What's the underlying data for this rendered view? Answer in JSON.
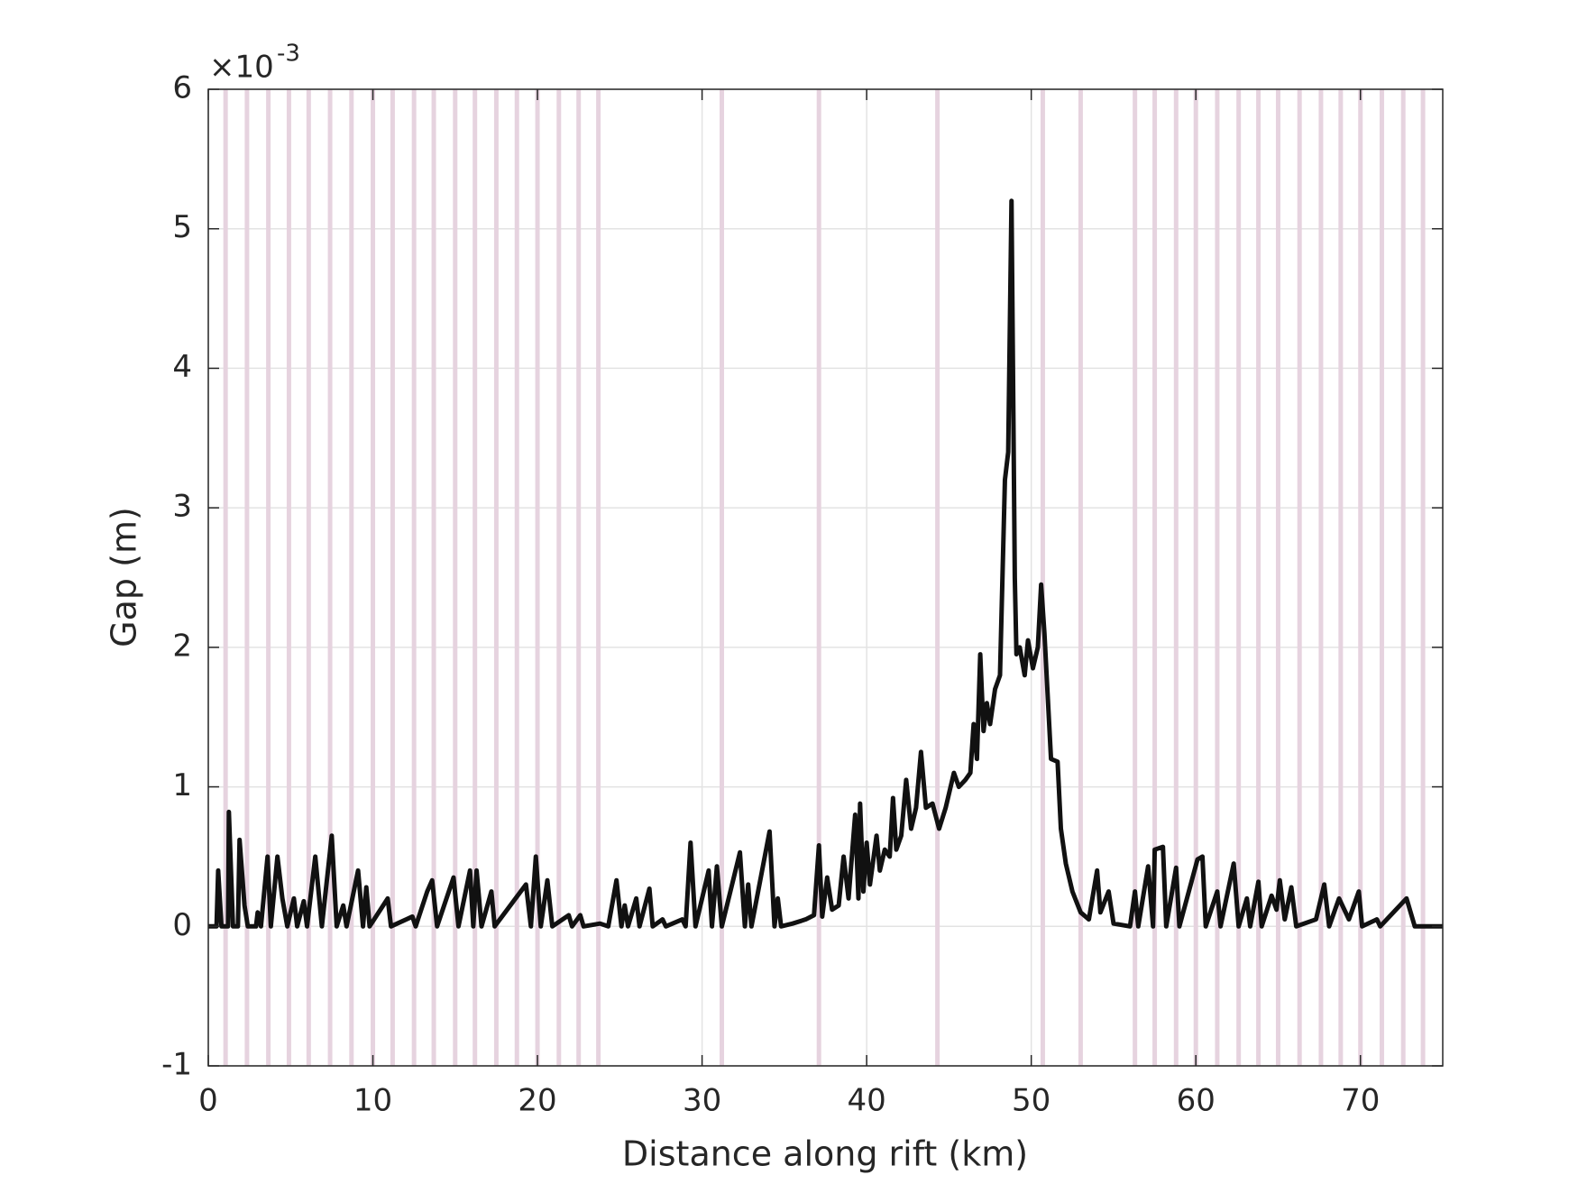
{
  "chart_data": {
    "type": "line",
    "xlabel": "Distance along rift (km)",
    "ylabel": "Gap (m)",
    "y_exponent": {
      "base": "×10",
      "power": "-3"
    },
    "xlim": [
      0,
      75
    ],
    "xticks": [
      0,
      10,
      20,
      30,
      40,
      50,
      60,
      70
    ],
    "ylim": [
      -1,
      6
    ],
    "yticks": [
      -1,
      0,
      1,
      2,
      3,
      4,
      5,
      6
    ],
    "grid": true,
    "bands": {
      "color": "#e6d3df",
      "x": [
        1.05,
        2.35,
        3.65,
        4.9,
        6.1,
        7.4,
        8.7,
        10.0,
        11.2,
        12.5,
        13.7,
        15.0,
        16.2,
        17.5,
        18.75,
        20.0,
        21.3,
        22.5,
        23.7,
        31.2,
        37.1,
        44.3,
        50.7,
        53.0,
        56.3,
        57.5,
        58.8,
        60.0,
        61.3,
        62.6,
        63.8,
        65.0,
        66.3,
        67.6,
        68.8,
        70.0,
        71.3,
        72.6,
        73.8
      ]
    },
    "color": "#111111",
    "x": [
      0,
      0.5,
      0.6,
      0.8,
      1.2,
      1.25,
      1.5,
      1.8,
      1.9,
      2.2,
      2.4,
      2.9,
      3.0,
      3.2,
      3.6,
      3.8,
      4.2,
      4.5,
      4.8,
      5.2,
      5.4,
      5.8,
      6.0,
      6.5,
      6.9,
      7.5,
      7.8,
      8.2,
      8.4,
      9.1,
      9.4,
      9.6,
      9.8,
      10.9,
      11.1,
      12.4,
      12.6,
      13.3,
      13.6,
      13.9,
      14.9,
      15.2,
      15.9,
      16.1,
      16.3,
      16.6,
      17.2,
      17.4,
      19.3,
      19.6,
      19.9,
      20.2,
      20.6,
      20.9,
      21.9,
      22.1,
      22.6,
      22.8,
      23.8,
      24.3,
      24.8,
      25.1,
      25.3,
      25.5,
      26.0,
      26.2,
      26.8,
      27.0,
      27.6,
      27.8,
      28.8,
      29.0,
      29.3,
      29.6,
      30.4,
      30.6,
      30.9,
      31.2,
      32.3,
      32.6,
      32.8,
      33.0,
      34.1,
      34.4,
      34.6,
      34.8,
      35.5,
      36.3,
      36.8,
      37.1,
      37.3,
      37.6,
      37.9,
      38.3,
      38.6,
      38.9,
      39.3,
      39.5,
      39.6,
      39.8,
      40.0,
      40.2,
      40.6,
      40.8,
      41.1,
      41.4,
      41.6,
      41.8,
      42.1,
      42.4,
      42.7,
      43.0,
      43.3,
      43.6,
      44.0,
      44.4,
      44.8,
      45.3,
      45.6,
      46.0,
      46.3,
      46.5,
      46.7,
      46.9,
      47.1,
      47.3,
      47.5,
      47.8,
      48.1,
      48.4,
      48.6,
      48.8,
      49.0,
      49.1,
      49.3,
      49.6,
      49.8,
      50.1,
      50.4,
      50.6,
      50.8,
      51.2,
      51.6,
      51.8,
      52.1,
      52.5,
      53.0,
      53.5,
      54.0,
      54.2,
      54.7,
      55.0,
      56.0,
      56.3,
      56.5,
      57.1,
      57.4,
      57.5,
      58.0,
      58.2,
      58.8,
      59.0,
      60.1,
      60.4,
      60.6,
      61.3,
      61.5,
      62.3,
      62.6,
      63.1,
      63.3,
      63.8,
      64.0,
      64.6,
      64.9,
      65.1,
      65.4,
      65.8,
      66.1,
      67.3,
      67.8,
      68.1,
      68.7,
      69.3,
      69.9,
      70.1,
      71.0,
      71.2,
      72.8,
      73.3,
      75
    ],
    "values": [
      0,
      0,
      0.4,
      0,
      0,
      0.82,
      0,
      0,
      0.62,
      0.15,
      0,
      0,
      0.1,
      0,
      0.5,
      0,
      0.5,
      0.2,
      0,
      0.2,
      0,
      0.18,
      0,
      0.5,
      0,
      0.65,
      0,
      0.15,
      0,
      0.4,
      0,
      0.28,
      0,
      0.2,
      0,
      0.07,
      0,
      0.25,
      0.33,
      0,
      0.35,
      0,
      0.4,
      0,
      0.4,
      0,
      0.25,
      0,
      0.3,
      0,
      0.5,
      0,
      0.33,
      0,
      0.08,
      0,
      0.08,
      0,
      0.02,
      0,
      0.33,
      0,
      0.15,
      0,
      0.2,
      0,
      0.27,
      0,
      0.05,
      0,
      0.05,
      0,
      0.6,
      0,
      0.4,
      0,
      0.43,
      0,
      0.53,
      0,
      0.3,
      0,
      0.68,
      0,
      0.2,
      0,
      0.02,
      0.05,
      0.08,
      0.58,
      0.07,
      0.35,
      0.12,
      0.15,
      0.5,
      0.2,
      0.8,
      0.2,
      0.88,
      0.25,
      0.6,
      0.3,
      0.65,
      0.4,
      0.55,
      0.5,
      0.92,
      0.55,
      0.65,
      1.05,
      0.7,
      0.85,
      1.25,
      0.85,
      0.88,
      0.7,
      0.85,
      1.1,
      1.0,
      1.05,
      1.1,
      1.45,
      1.2,
      1.95,
      1.4,
      1.6,
      1.45,
      1.7,
      1.8,
      3.2,
      3.4,
      5.2,
      2.5,
      1.95,
      2.0,
      1.8,
      2.05,
      1.85,
      2.0,
      2.45,
      2.1,
      1.2,
      1.18,
      0.7,
      0.45,
      0.25,
      0.1,
      0.05,
      0.4,
      0.1,
      0.25,
      0.02,
      0,
      0.25,
      0,
      0.43,
      0,
      0.55,
      0.57,
      0,
      0.42,
      0,
      0.48,
      0.5,
      0,
      0.25,
      0,
      0.45,
      0,
      0.2,
      0,
      0.32,
      0,
      0.22,
      0.12,
      0.33,
      0.05,
      0.28,
      0,
      0.05,
      0.3,
      0,
      0.2,
      0.05,
      0.25,
      0,
      0.05,
      0,
      0.2,
      0,
      0
    ]
  }
}
